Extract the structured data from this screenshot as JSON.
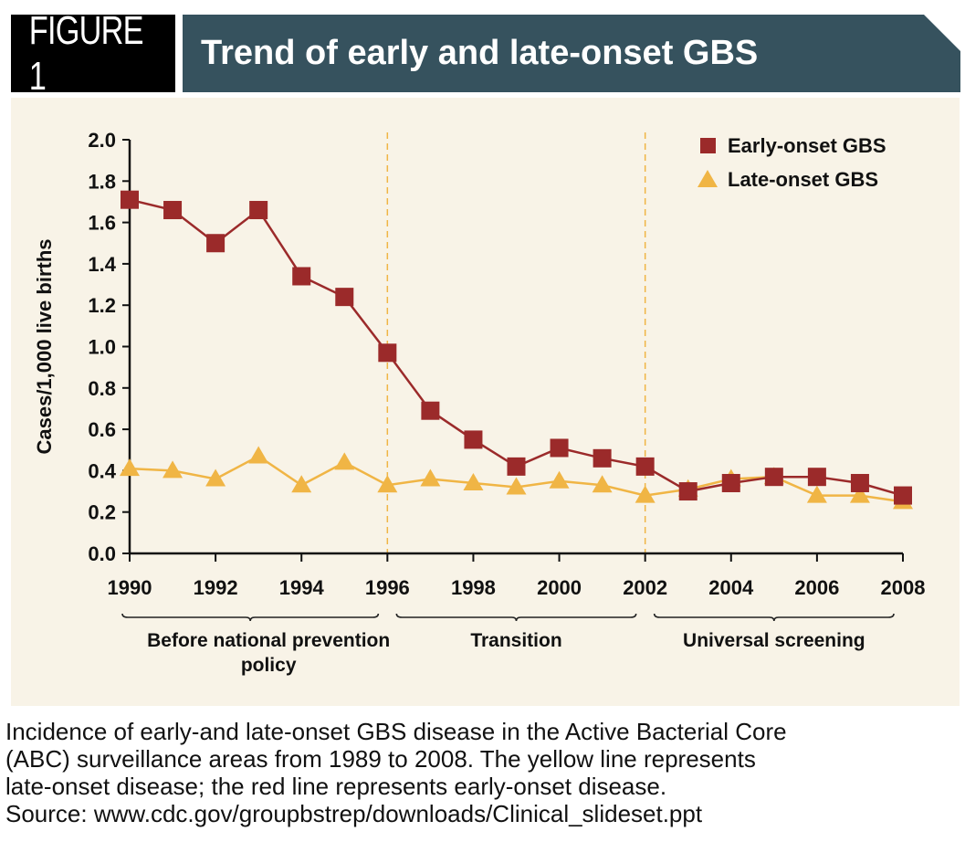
{
  "header": {
    "figure_label": "FIGURE 1",
    "title": "Trend of early and late-onset GBS",
    "title_bg_color": "#36525e"
  },
  "caption": {
    "lines": [
      "Incidence of early-and late-onset GBS disease in the Active Bacterial Core",
      "(ABC) surveillance areas from 1989 to 2008. The yellow line represents",
      "late-onset disease; the red line represents early-onset disease.",
      "Source: www.cdc.gov/groupbstrep/downloads/Clinical_slideset.ppt"
    ]
  },
  "chart_data": {
    "type": "line",
    "title": "Trend of early and late-onset GBS",
    "xlabel": "",
    "ylabel": "Cases/1,000 live births",
    "x": [
      1990,
      1991,
      1992,
      1993,
      1994,
      1995,
      1996,
      1997,
      1998,
      1999,
      2000,
      2001,
      2002,
      2003,
      2004,
      2005,
      2006,
      2007,
      2008
    ],
    "xlim": [
      1990,
      2008
    ],
    "ylim": [
      0,
      2.0
    ],
    "x_ticks": [
      "1990",
      "1992",
      "1994",
      "1996",
      "1998",
      "2000",
      "2002",
      "2004",
      "2006",
      "2008"
    ],
    "y_ticks": [
      "0.0",
      "0.2",
      "0.4",
      "0.6",
      "0.8",
      "1.0",
      "1.2",
      "1.4",
      "1.6",
      "1.8",
      "2.0"
    ],
    "grid": false,
    "legend_position": "top-right",
    "series": [
      {
        "name": "Early-onset GBS",
        "marker": "square",
        "color": "#9b2a2a",
        "values": [
          1.71,
          1.66,
          1.5,
          1.66,
          1.34,
          1.24,
          0.97,
          0.69,
          0.55,
          0.42,
          0.51,
          0.46,
          0.42,
          0.3,
          0.34,
          0.37,
          0.37,
          0.34,
          0.28
        ]
      },
      {
        "name": "Late-onset GBS",
        "marker": "triangle",
        "color": "#f0b545",
        "values": [
          0.41,
          0.4,
          0.36,
          0.47,
          0.33,
          0.44,
          0.33,
          0.36,
          0.34,
          0.32,
          0.35,
          0.33,
          0.28,
          0.31,
          0.36,
          0.37,
          0.28,
          0.28,
          0.25
        ]
      }
    ],
    "reference_lines": [
      1996,
      2002
    ],
    "periods": [
      {
        "label": "Before national prevention policy",
        "label_line2": "policy",
        "start": 1990,
        "end": 1996
      },
      {
        "label": "Transition",
        "start": 1996,
        "end": 2002
      },
      {
        "label": "Universal screening",
        "start": 2002,
        "end": 2008
      }
    ]
  }
}
